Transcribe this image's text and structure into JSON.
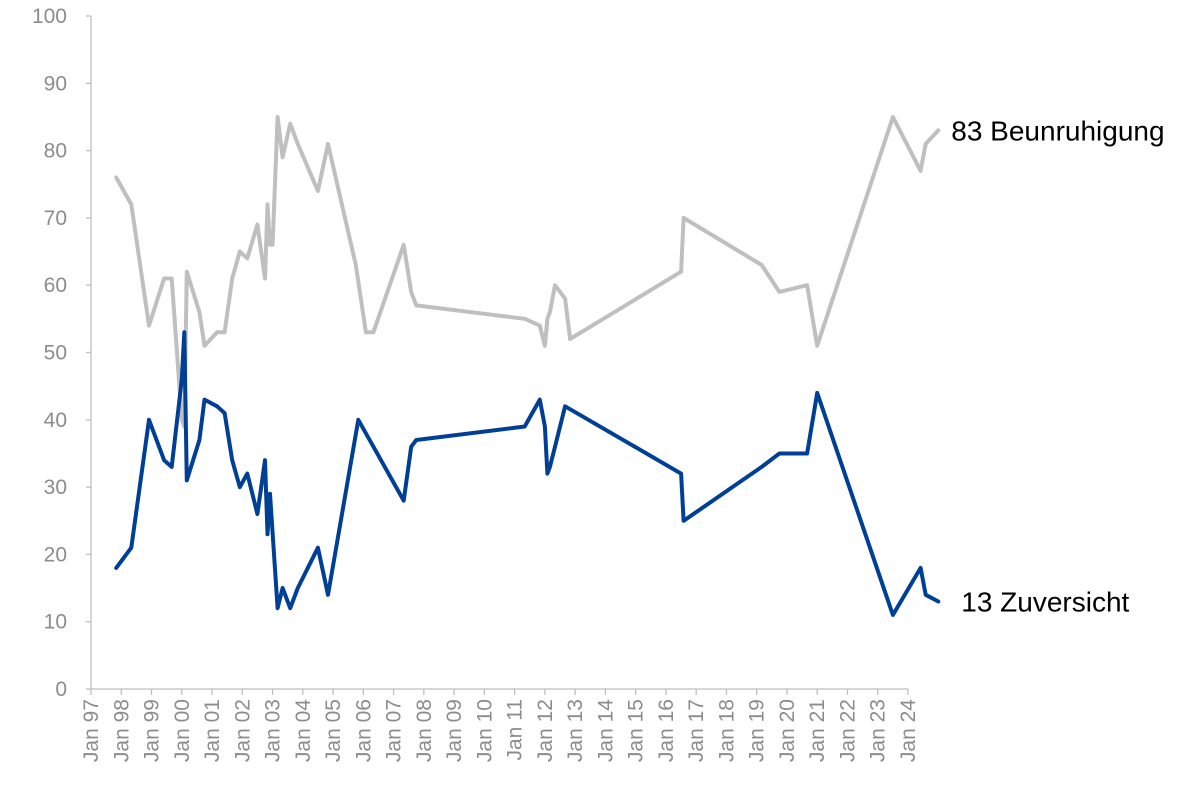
{
  "chart_data": {
    "type": "line",
    "ylim": [
      0,
      100
    ],
    "yticks": [
      0,
      10,
      20,
      30,
      40,
      50,
      60,
      70,
      80,
      90,
      100
    ],
    "xlim": [
      "1997-01",
      "2024-01"
    ],
    "xticks": [
      {
        "date": "1997-01",
        "label": "Jan 97"
      },
      {
        "date": "1998-01",
        "label": "Jan 98"
      },
      {
        "date": "1999-01",
        "label": "Jan 99"
      },
      {
        "date": "2000-01",
        "label": "Jan 00"
      },
      {
        "date": "2001-01",
        "label": "Jan 01"
      },
      {
        "date": "2002-01",
        "label": "Jan 02"
      },
      {
        "date": "2003-01",
        "label": "Jan 03"
      },
      {
        "date": "2004-01",
        "label": "Jan 04"
      },
      {
        "date": "2005-01",
        "label": "Jan 05"
      },
      {
        "date": "2006-01",
        "label": "Jan 06"
      },
      {
        "date": "2007-01",
        "label": "Jan 07"
      },
      {
        "date": "2008-01",
        "label": "Jan 08"
      },
      {
        "date": "2009-01",
        "label": "Jan 09"
      },
      {
        "date": "2010-01",
        "label": "Jan 10"
      },
      {
        "date": "2011-01",
        "label": "Jan 11"
      },
      {
        "date": "2012-01",
        "label": "Jan 12"
      },
      {
        "date": "2013-01",
        "label": "Jan 13"
      },
      {
        "date": "2014-01",
        "label": "Jan 14"
      },
      {
        "date": "2015-01",
        "label": "Jan 15"
      },
      {
        "date": "2016-01",
        "label": "Jan 16"
      },
      {
        "date": "2017-01",
        "label": "Jan 17"
      },
      {
        "date": "2018-01",
        "label": "Jan 18"
      },
      {
        "date": "2019-01",
        "label": "Jan 19"
      },
      {
        "date": "2020-01",
        "label": "Jan 20"
      },
      {
        "date": "2021-01",
        "label": "Jan 21"
      },
      {
        "date": "2022-01",
        "label": "Jan 22"
      },
      {
        "date": "2023-01",
        "label": "Jan 23"
      },
      {
        "date": "2024-01",
        "label": "Jan 24"
      }
    ],
    "grid": false,
    "series": [
      {
        "name": "Beunruhigung",
        "end_label": "83 Beunruhigung",
        "color": "#bfbfbf",
        "points": [
          [
            "1997-11",
            76
          ],
          [
            "1998-05",
            72
          ],
          [
            "1998-12",
            54
          ],
          [
            "1999-06",
            61
          ],
          [
            "1999-09",
            61
          ],
          [
            "2000-01",
            40
          ],
          [
            "2000-02",
            39
          ],
          [
            "2000-03",
            62
          ],
          [
            "2000-08",
            56
          ],
          [
            "2000-10",
            51
          ],
          [
            "2001-03",
            53
          ],
          [
            "2001-06",
            53
          ],
          [
            "2001-09",
            61
          ],
          [
            "2001-12",
            65
          ],
          [
            "2002-03",
            64
          ],
          [
            "2002-07",
            69
          ],
          [
            "2002-10",
            61
          ],
          [
            "2002-11",
            72
          ],
          [
            "2002-12",
            66
          ],
          [
            "2003-01",
            66
          ],
          [
            "2003-03",
            85
          ],
          [
            "2003-05",
            79
          ],
          [
            "2003-08",
            84
          ],
          [
            "2003-11",
            81
          ],
          [
            "2004-07",
            74
          ],
          [
            "2004-11",
            81
          ],
          [
            "2005-10",
            63
          ],
          [
            "2006-02",
            53
          ],
          [
            "2006-05",
            53
          ],
          [
            "2007-05",
            66
          ],
          [
            "2007-08",
            59
          ],
          [
            "2007-10",
            57
          ],
          [
            "2011-05",
            55
          ],
          [
            "2011-11",
            54
          ],
          [
            "2012-01",
            51
          ],
          [
            "2012-02",
            55
          ],
          [
            "2012-03",
            56
          ],
          [
            "2012-05",
            60
          ],
          [
            "2012-09",
            58
          ],
          [
            "2012-11",
            52
          ],
          [
            "2016-07",
            62
          ],
          [
            "2016-08",
            70
          ],
          [
            "2019-03",
            63
          ],
          [
            "2019-10",
            59
          ],
          [
            "2020-09",
            60
          ],
          [
            "2021-01",
            51
          ],
          [
            "2023-07",
            85
          ],
          [
            "2024-06",
            77
          ],
          [
            "2024-08",
            81
          ],
          [
            "2025-01",
            83
          ]
        ]
      },
      {
        "name": "Zuversicht",
        "end_label": "13 Zuversicht",
        "color": "#003f96",
        "points": [
          [
            "1997-11",
            18
          ],
          [
            "1998-05",
            21
          ],
          [
            "1998-12",
            40
          ],
          [
            "1999-06",
            34
          ],
          [
            "1999-09",
            33
          ],
          [
            "2000-01",
            46
          ],
          [
            "2000-02",
            53
          ],
          [
            "2000-03",
            31
          ],
          [
            "2000-08",
            37
          ],
          [
            "2000-10",
            43
          ],
          [
            "2001-03",
            42
          ],
          [
            "2001-06",
            41
          ],
          [
            "2001-09",
            34
          ],
          [
            "2001-12",
            30
          ],
          [
            "2002-03",
            32
          ],
          [
            "2002-07",
            26
          ],
          [
            "2002-10",
            34
          ],
          [
            "2002-11",
            23
          ],
          [
            "2002-12",
            29
          ],
          [
            "2003-03",
            12
          ],
          [
            "2003-05",
            15
          ],
          [
            "2003-08",
            12
          ],
          [
            "2003-11",
            15
          ],
          [
            "2004-07",
            21
          ],
          [
            "2004-11",
            14
          ],
          [
            "2005-11",
            40
          ],
          [
            "2006-02",
            38
          ],
          [
            "2007-05",
            28
          ],
          [
            "2007-08",
            36
          ],
          [
            "2007-10",
            37
          ],
          [
            "2011-05",
            39
          ],
          [
            "2011-11",
            43
          ],
          [
            "2012-01",
            39
          ],
          [
            "2012-02",
            32
          ],
          [
            "2012-03",
            33
          ],
          [
            "2012-05",
            36
          ],
          [
            "2012-09",
            42
          ],
          [
            "2016-07",
            32
          ],
          [
            "2016-08",
            25
          ],
          [
            "2019-03",
            33
          ],
          [
            "2019-10",
            35
          ],
          [
            "2020-09",
            35
          ],
          [
            "2021-01",
            44
          ],
          [
            "2023-07",
            11
          ],
          [
            "2024-06",
            18
          ],
          [
            "2024-08",
            14
          ],
          [
            "2025-01",
            13
          ]
        ]
      }
    ]
  }
}
